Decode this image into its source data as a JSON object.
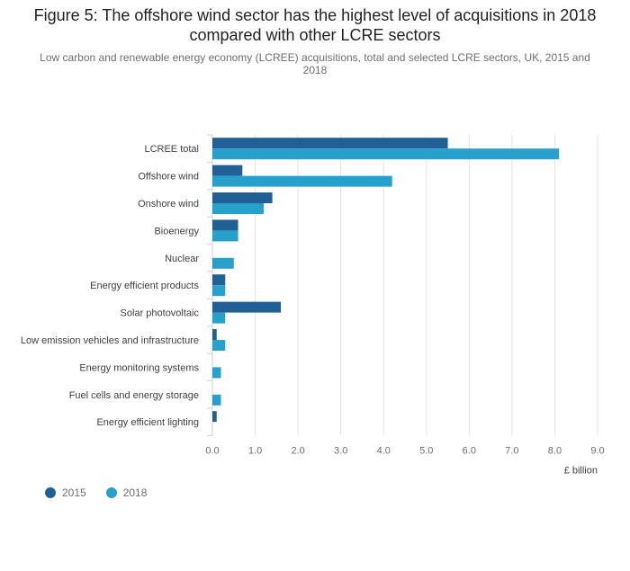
{
  "chart_data": {
    "type": "bar",
    "orientation": "horizontal",
    "title": "Figure 5: The offshore wind sector has the highest level of acquisitions in 2018 compared with other LCRE sectors",
    "subtitle": "Low carbon and renewable energy economy (LCREE) acquisitions, total and selected LCRE sectors, UK, 2015 and 2018",
    "categories": [
      "LCREE total",
      "Offshore wind",
      "Onshore wind",
      "Bioenergy",
      "Nuclear",
      "Energy efficient products",
      "Solar photovoltaic",
      "Low emission vehicles and infrastructure",
      "Energy monitoring systems",
      "Fuel cells and energy storage",
      "Energy efficient lighting"
    ],
    "series": [
      {
        "name": "2015",
        "color": "#206095",
        "values": [
          5.5,
          0.7,
          1.4,
          0.6,
          0.0,
          0.3,
          1.6,
          0.1,
          0.0,
          0.0,
          0.1
        ]
      },
      {
        "name": "2018",
        "color": "#27a0cc",
        "values": [
          8.1,
          4.2,
          1.2,
          0.6,
          0.5,
          0.3,
          0.3,
          0.3,
          0.2,
          0.2,
          0.0
        ]
      }
    ],
    "xlabel": "£ billion",
    "xlim": [
      0,
      9
    ],
    "xticks": [
      "0.0",
      "1.0",
      "2.0",
      "3.0",
      "4.0",
      "5.0",
      "6.0",
      "7.0",
      "8.0",
      "9.0"
    ],
    "grid": true,
    "legend_position": "bottom-left"
  }
}
